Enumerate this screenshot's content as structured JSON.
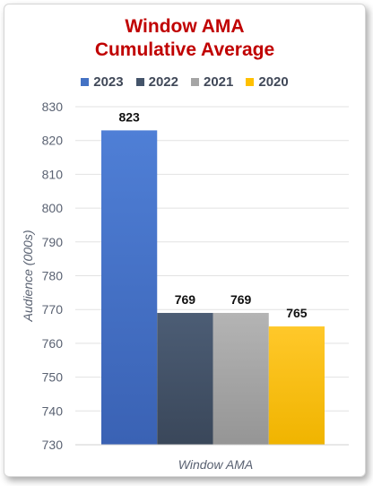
{
  "chart_data": {
    "type": "bar",
    "title_line1": "Window AMA",
    "title_line2": "Cumulative Average",
    "xlabel": "Window AMA",
    "ylabel": "Audience (000s)",
    "categories": [
      "Window AMA"
    ],
    "series": [
      {
        "name": "2023",
        "values": [
          823
        ],
        "color": "#4472c4"
      },
      {
        "name": "2022",
        "values": [
          769
        ],
        "color": "#44546a"
      },
      {
        "name": "2021",
        "values": [
          769
        ],
        "color": "#a5a5a5"
      },
      {
        "name": "2020",
        "values": [
          765
        ],
        "color": "#ffc000"
      }
    ],
    "ylim": [
      730,
      830
    ],
    "yticks": [
      730,
      740,
      750,
      760,
      770,
      780,
      790,
      800,
      810,
      820,
      830
    ],
    "grid": true,
    "legend_position": "top"
  }
}
